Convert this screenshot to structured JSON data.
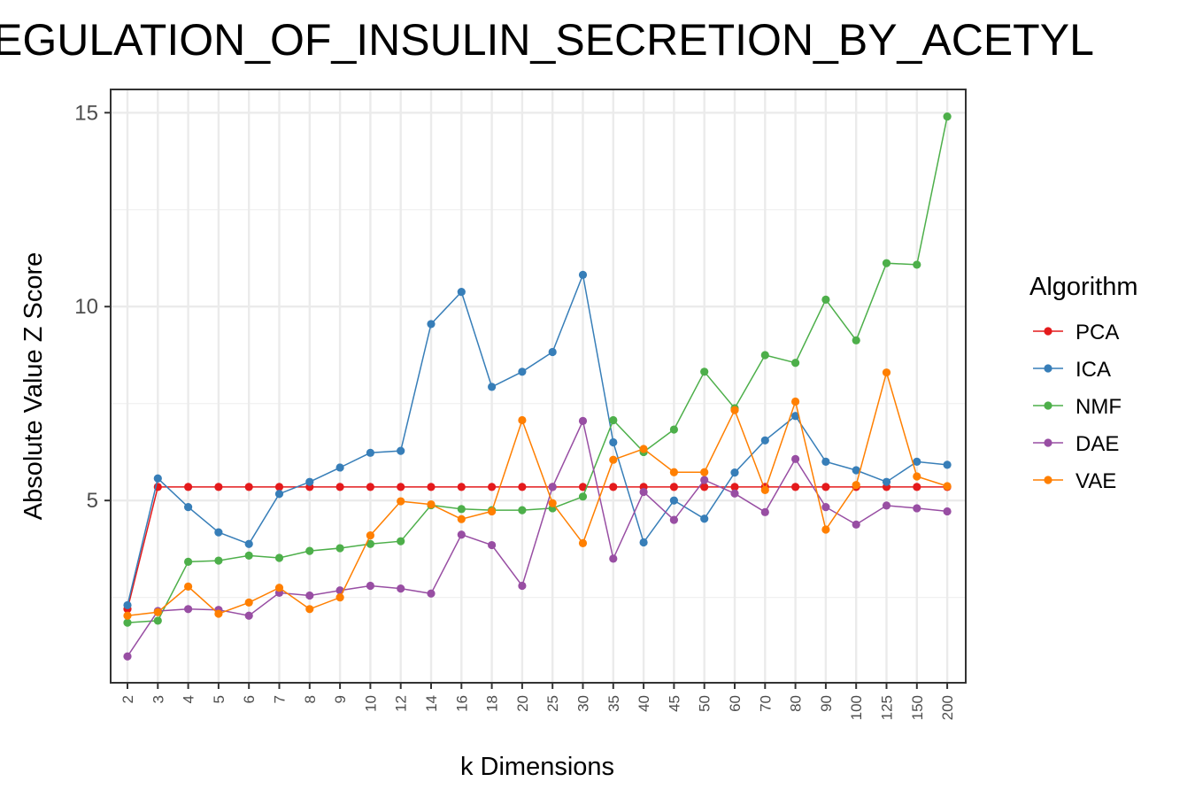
{
  "chart_data": {
    "type": "line",
    "title": "EGULATION_OF_INSULIN_SECRETION_BY_ACETYL",
    "xlabel": "k Dimensions",
    "ylabel": "Absolute Value Z Score",
    "x": [
      "2",
      "3",
      "4",
      "5",
      "6",
      "7",
      "8",
      "9",
      "10",
      "12",
      "14",
      "16",
      "18",
      "20",
      "25",
      "30",
      "35",
      "40",
      "45",
      "50",
      "60",
      "70",
      "80",
      "90",
      "100",
      "125",
      "150",
      "200"
    ],
    "ylim": [
      0.3,
      15.6
    ],
    "yticks": [
      5,
      10,
      15
    ],
    "grid": true,
    "legend": {
      "title": "Algorithm",
      "placement": "right"
    },
    "series": [
      {
        "name": "PCA",
        "color": "#E41A1C",
        "values": [
          2.2,
          5.35,
          5.35,
          5.35,
          5.35,
          5.35,
          5.35,
          5.35,
          5.35,
          5.35,
          5.35,
          5.35,
          5.35,
          5.35,
          5.35,
          5.35,
          5.35,
          5.35,
          5.35,
          5.35,
          5.35,
          5.35,
          5.35,
          5.35,
          5.35,
          5.35,
          5.35,
          5.35
        ]
      },
      {
        "name": "ICA",
        "color": "#377EB8",
        "values": [
          2.3,
          5.57,
          4.83,
          4.18,
          3.88,
          5.17,
          5.48,
          5.85,
          6.23,
          6.28,
          9.55,
          10.38,
          7.93,
          8.32,
          8.83,
          10.82,
          6.5,
          3.92,
          5.0,
          4.53,
          5.72,
          6.55,
          7.18,
          6.0,
          5.78,
          5.48,
          6.0,
          5.92
        ]
      },
      {
        "name": "NMF",
        "color": "#4DAF4A",
        "values": [
          1.85,
          1.9,
          3.42,
          3.45,
          3.58,
          3.52,
          3.7,
          3.77,
          3.88,
          3.95,
          4.88,
          4.78,
          4.75,
          4.75,
          4.8,
          5.1,
          7.07,
          6.25,
          6.83,
          8.32,
          7.38,
          8.75,
          8.55,
          10.18,
          9.13,
          11.12,
          11.08,
          14.9
        ]
      },
      {
        "name": "DAE",
        "color": "#984EA3",
        "values": [
          0.98,
          2.15,
          2.2,
          2.18,
          2.03,
          2.62,
          2.55,
          2.68,
          2.8,
          2.73,
          2.6,
          4.12,
          3.85,
          2.8,
          5.35,
          7.05,
          3.5,
          5.22,
          4.5,
          5.53,
          5.18,
          4.7,
          6.07,
          4.83,
          4.38,
          4.87,
          4.8,
          4.72
        ]
      },
      {
        "name": "VAE",
        "color": "#FF7F00",
        "values": [
          2.03,
          2.12,
          2.78,
          2.08,
          2.37,
          2.75,
          2.2,
          2.5,
          4.1,
          4.98,
          4.9,
          4.52,
          4.72,
          7.07,
          4.93,
          3.9,
          6.05,
          6.33,
          5.73,
          5.73,
          7.33,
          5.27,
          7.55,
          4.25,
          5.4,
          8.3,
          5.62,
          5.37
        ]
      }
    ]
  }
}
